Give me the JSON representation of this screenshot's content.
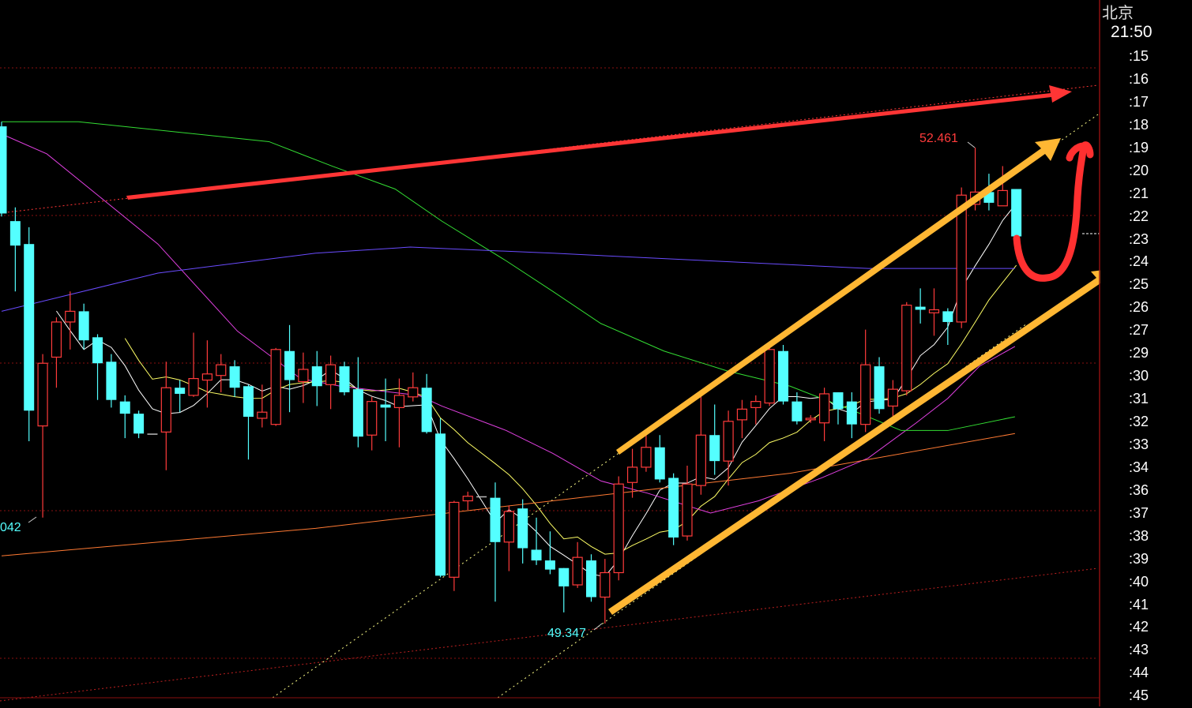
{
  "colors": {
    "up": "#ff3b3b",
    "down": "#54ffff",
    "doji": "#bbbbbb",
    "ma5": "#ffffff",
    "ma10": "#ffff66",
    "ma_magenta": "#e040e0",
    "ma_green": "#33dd33",
    "ma_purple": "#6a4cff",
    "ma_orange": "#ff7a33",
    "grid": "#8a1010",
    "annot_red": "#ff3535",
    "annot_orange": "#ffb733"
  },
  "axis": {
    "city": "北京",
    "time": "21:50",
    "ticks": [
      ":15",
      ":16",
      ":17",
      ":18",
      ":19",
      ":20",
      ":21",
      ":22",
      ":23",
      ":24",
      ":25",
      ":26",
      ":27",
      ":29",
      ":30",
      ":31",
      ":32",
      ":33",
      ":34",
      ":36",
      ":37",
      ":38",
      ":39",
      ":40",
      ":41",
      ":42",
      ":43",
      ":44",
      ":45"
    ]
  },
  "labels": {
    "high": "52.461",
    "low": "49.347",
    "left_low": "042"
  },
  "chart_data": {
    "type": "candlestick",
    "ohlc_order": [
      "open",
      "high",
      "low",
      "close"
    ],
    "candles": [
      [
        52.6,
        52.63,
        52.01,
        52.03
      ],
      [
        51.98,
        52.07,
        51.52,
        51.82
      ],
      [
        51.83,
        51.94,
        50.54,
        50.74
      ],
      [
        50.64,
        51.11,
        50.04,
        51.05
      ],
      [
        51.09,
        51.35,
        50.89,
        51.32
      ],
      [
        51.32,
        51.52,
        51.14,
        51.39
      ],
      [
        51.39,
        51.44,
        51.14,
        51.2
      ],
      [
        51.22,
        51.24,
        50.81,
        51.05
      ],
      [
        51.06,
        51.11,
        50.76,
        50.81
      ],
      [
        50.8,
        50.84,
        50.56,
        50.72
      ],
      [
        50.72,
        50.74,
        50.56,
        50.59
      ],
      [
        50.59,
        50.59,
        50.59,
        50.59
      ],
      [
        50.6,
        51.06,
        50.35,
        50.89
      ],
      [
        50.89,
        50.94,
        50.73,
        50.85
      ],
      [
        50.84,
        51.25,
        50.83,
        50.95
      ],
      [
        50.94,
        51.2,
        50.76,
        50.98
      ],
      [
        50.97,
        51.11,
        50.86,
        51.04
      ],
      [
        51.03,
        51.07,
        50.83,
        50.89
      ],
      [
        50.9,
        50.91,
        50.42,
        50.7
      ],
      [
        50.69,
        50.91,
        50.63,
        50.73
      ],
      [
        50.65,
        51.15,
        50.64,
        51.14
      ],
      [
        51.13,
        51.3,
        50.73,
        50.94
      ],
      [
        50.93,
        51.12,
        50.79,
        51.01
      ],
      [
        51.03,
        51.13,
        50.77,
        50.9
      ],
      [
        50.91,
        51.1,
        50.75,
        51.04
      ],
      [
        51.03,
        51.06,
        50.84,
        50.86
      ],
      [
        50.88,
        51.09,
        50.5,
        50.57
      ],
      [
        50.58,
        50.83,
        50.48,
        50.8
      ],
      [
        50.78,
        50.95,
        50.54,
        50.76
      ],
      [
        50.76,
        50.95,
        50.5,
        50.84
      ],
      [
        50.83,
        50.99,
        50.8,
        50.89
      ],
      [
        50.89,
        50.98,
        50.59,
        50.6
      ],
      [
        50.59,
        50.69,
        49.65,
        49.66
      ],
      [
        49.65,
        50.15,
        49.56,
        50.14
      ],
      [
        50.15,
        50.21,
        50.09,
        50.18
      ],
      [
        50.18,
        50.18,
        50.18,
        50.18
      ],
      [
        50.17,
        50.27,
        49.49,
        49.88
      ],
      [
        49.88,
        50.12,
        49.69,
        50.08
      ],
      [
        50.1,
        50.16,
        49.74,
        49.84
      ],
      [
        49.83,
        50.04,
        49.73,
        49.76
      ],
      [
        49.76,
        49.95,
        49.67,
        49.7
      ],
      [
        49.71,
        49.71,
        49.42,
        49.59
      ],
      [
        49.6,
        49.88,
        49.58,
        49.78
      ],
      [
        49.76,
        49.8,
        49.49,
        49.52
      ],
      [
        49.52,
        49.77,
        49.347,
        49.68
      ],
      [
        49.68,
        50.31,
        49.63,
        50.26
      ],
      [
        50.27,
        50.49,
        50.17,
        50.37
      ],
      [
        50.37,
        50.58,
        50.34,
        50.5
      ],
      [
        50.5,
        50.58,
        50.27,
        50.29
      ],
      [
        50.3,
        50.33,
        49.86,
        49.91
      ],
      [
        49.92,
        50.38,
        49.89,
        50.26
      ],
      [
        50.25,
        50.84,
        50.19,
        50.58
      ],
      [
        50.58,
        50.78,
        50.32,
        50.41
      ],
      [
        50.41,
        50.74,
        50.25,
        50.67
      ],
      [
        50.68,
        50.81,
        50.56,
        50.75
      ],
      [
        50.76,
        50.84,
        50.65,
        50.8
      ],
      [
        50.79,
        51.15,
        50.77,
        51.14
      ],
      [
        51.13,
        51.17,
        50.78,
        50.8
      ],
      [
        50.8,
        50.86,
        50.65,
        50.67
      ],
      [
        50.68,
        50.71,
        50.66,
        50.69
      ],
      [
        50.66,
        50.89,
        50.54,
        50.85
      ],
      [
        50.86,
        50.86,
        50.65,
        50.75
      ],
      [
        50.8,
        50.86,
        50.56,
        50.65
      ],
      [
        50.65,
        51.27,
        50.6,
        51.04
      ],
      [
        51.03,
        51.09,
        50.72,
        50.75
      ],
      [
        50.77,
        50.94,
        50.69,
        50.88
      ],
      [
        50.87,
        51.45,
        50.84,
        51.43
      ],
      [
        51.42,
        51.54,
        51.31,
        51.4
      ],
      [
        51.38,
        51.54,
        51.23,
        51.4
      ],
      [
        51.39,
        51.41,
        51.17,
        51.32
      ],
      [
        51.32,
        52.2,
        51.28,
        52.15
      ],
      [
        52.09,
        52.461,
        52.05,
        52.17
      ],
      [
        52.17,
        52.29,
        52.05,
        52.1
      ],
      [
        52.08,
        52.34,
        52.08,
        52.18
      ],
      [
        52.19,
        52.19,
        51.88,
        51.88
      ]
    ],
    "moving_averages": [
      {
        "color_key": "ma5",
        "period": 5
      },
      {
        "color_key": "ma10",
        "period": 10
      },
      {
        "color_key": "ma_magenta",
        "points": [
          [
            0,
            52.55
          ],
          [
            3.3,
            52.42
          ],
          [
            11.4,
            51.83
          ],
          [
            17.2,
            51.26
          ],
          [
            21.8,
            50.95
          ],
          [
            24.7,
            50.9
          ],
          [
            30.4,
            50.84
          ],
          [
            32.1,
            50.77
          ],
          [
            36.8,
            50.61
          ],
          [
            40.2,
            50.46
          ],
          [
            43.7,
            50.28
          ],
          [
            47.1,
            50.2
          ],
          [
            51.7,
            50.07
          ],
          [
            55.2,
            50.15
          ],
          [
            59.8,
            50.3
          ],
          [
            63.2,
            50.43
          ],
          [
            66.7,
            50.66
          ],
          [
            69.0,
            50.82
          ],
          [
            71.3,
            51.03
          ],
          [
            73.9,
            51.16
          ]
        ]
      },
      {
        "color_key": "ma_green",
        "points": [
          [
            0,
            52.63
          ],
          [
            5.6,
            52.63
          ],
          [
            19.5,
            52.5
          ],
          [
            24.1,
            52.34
          ],
          [
            28.7,
            52.19
          ],
          [
            32.1,
            51.98
          ],
          [
            36.8,
            51.72
          ],
          [
            40.2,
            51.52
          ],
          [
            43.7,
            51.31
          ],
          [
            48.3,
            51.13
          ],
          [
            52.9,
            51.0
          ],
          [
            57.5,
            50.9
          ],
          [
            62.1,
            50.74
          ],
          [
            65.6,
            50.61
          ],
          [
            69.0,
            50.61
          ],
          [
            73.9,
            50.7
          ]
        ]
      },
      {
        "color_key": "ma_purple",
        "points": [
          [
            0,
            51.39
          ],
          [
            11.4,
            51.64
          ],
          [
            22.9,
            51.77
          ],
          [
            29.8,
            51.81
          ],
          [
            40.2,
            51.77
          ],
          [
            51.7,
            51.72
          ],
          [
            63.2,
            51.67
          ],
          [
            73.9,
            51.67
          ]
        ]
      },
      {
        "color_key": "ma_orange",
        "points": [
          [
            0,
            49.79
          ],
          [
            22.9,
            49.97
          ],
          [
            40.2,
            50.15
          ],
          [
            57.5,
            50.33
          ],
          [
            73.9,
            50.59
          ]
        ]
      }
    ],
    "highest": 52.461,
    "lowest": 49.347,
    "grid": true
  }
}
